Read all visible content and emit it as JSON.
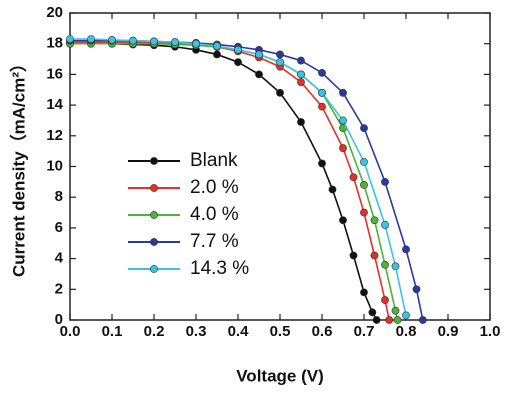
{
  "chart_data": {
    "type": "line",
    "xlabel": "Voltage (V)",
    "ylabel": "Current density（mA/cm²）",
    "xlim": [
      0,
      1.0
    ],
    "ylim": [
      0,
      20
    ],
    "xticks": [
      {
        "value": 0,
        "label": "0.0"
      },
      0.1,
      0.2,
      0.3,
      0.4,
      0.5,
      0.6,
      0.7,
      0.8,
      0.9,
      {
        "value": 1,
        "label": "1.0"
      }
    ],
    "yticks": [
      0,
      2,
      4,
      6,
      8,
      10,
      12,
      14,
      16,
      18,
      20
    ],
    "legend": "center-left",
    "series": [
      {
        "name": "Blank",
        "color": "#111111",
        "x": [
          0,
          0.05,
          0.1,
          0.15,
          0.2,
          0.25,
          0.3,
          0.35,
          0.4,
          0.45,
          0.5,
          0.55,
          0.6,
          0.625,
          0.65,
          0.675,
          0.7,
          0.72,
          0.73
        ],
        "values": [
          18.0,
          18.0,
          18.0,
          17.95,
          17.9,
          17.8,
          17.6,
          17.3,
          16.8,
          16.0,
          14.8,
          12.9,
          10.2,
          8.5,
          6.5,
          4.2,
          1.8,
          0.5,
          0
        ]
      },
      {
        "name": "2.0 %",
        "color": "#e3302b",
        "x": [
          0,
          0.05,
          0.1,
          0.15,
          0.2,
          0.25,
          0.3,
          0.35,
          0.4,
          0.45,
          0.5,
          0.55,
          0.6,
          0.65,
          0.675,
          0.7,
          0.725,
          0.75,
          0.76
        ],
        "values": [
          18.1,
          18.1,
          18.1,
          18.1,
          18.05,
          18.0,
          17.9,
          17.8,
          17.5,
          17.1,
          16.5,
          15.5,
          13.9,
          11.2,
          9.3,
          7.0,
          4.2,
          1.3,
          0
        ]
      },
      {
        "name": "4.0 %",
        "color": "#4db33a",
        "x": [
          0,
          0.05,
          0.1,
          0.15,
          0.2,
          0.25,
          0.3,
          0.35,
          0.4,
          0.45,
          0.5,
          0.55,
          0.6,
          0.65,
          0.7,
          0.725,
          0.75,
          0.775,
          0.78
        ],
        "values": [
          18.0,
          18.0,
          18.0,
          18.0,
          18.0,
          17.95,
          17.9,
          17.8,
          17.6,
          17.3,
          16.8,
          16.0,
          14.8,
          12.5,
          8.8,
          6.5,
          3.6,
          0.6,
          0
        ]
      },
      {
        "name": "7.7 %",
        "color": "#2a3a9a",
        "x": [
          0,
          0.05,
          0.1,
          0.15,
          0.2,
          0.25,
          0.3,
          0.35,
          0.4,
          0.45,
          0.5,
          0.55,
          0.6,
          0.65,
          0.7,
          0.75,
          0.8,
          0.825,
          0.84
        ],
        "values": [
          18.2,
          18.2,
          18.2,
          18.2,
          18.15,
          18.1,
          18.05,
          17.95,
          17.8,
          17.6,
          17.3,
          16.9,
          16.1,
          14.8,
          12.5,
          9.0,
          4.6,
          2.0,
          0
        ]
      },
      {
        "name": "14.3 %",
        "color": "#3cc3e0",
        "x": [
          0,
          0.05,
          0.1,
          0.15,
          0.2,
          0.25,
          0.3,
          0.35,
          0.4,
          0.45,
          0.5,
          0.55,
          0.6,
          0.65,
          0.7,
          0.75,
          0.775,
          0.8
        ],
        "values": [
          18.3,
          18.3,
          18.25,
          18.2,
          18.15,
          18.1,
          18.0,
          17.85,
          17.6,
          17.3,
          16.8,
          16.0,
          14.8,
          13.0,
          10.3,
          6.2,
          3.5,
          0.3
        ]
      }
    ]
  }
}
